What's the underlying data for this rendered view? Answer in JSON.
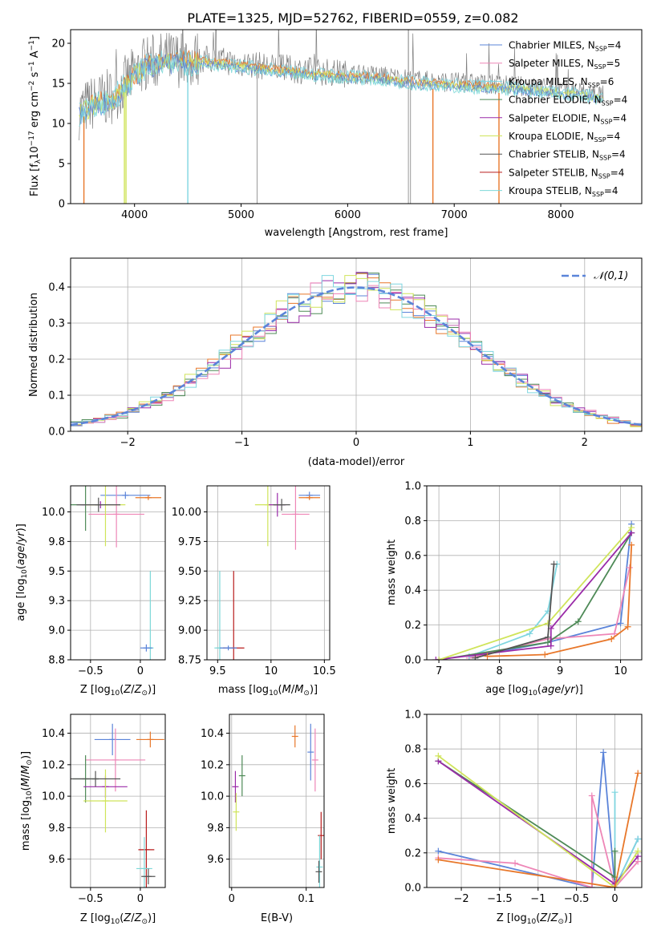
{
  "title": "PLATE=1325, MJD=52762, FIBERID=0559, z=0.082",
  "colors": {
    "chabrier_miles": "#5b84d9",
    "salpeter_miles": "#ee86b7",
    "kroupa_miles": "#7fd6e0",
    "chabrier_elodie": "#4e8a57",
    "salpeter_elodie": "#9a2aa8",
    "kroupa_elodie": "#cfe45a",
    "chabrier_stelib": "#555555",
    "salpeter_stelib": "#b91c1c",
    "kroupa_stelib": "#7dd8d8",
    "orange": "#e8772a",
    "grid": "#b0b0b0"
  },
  "chart_data": [
    {
      "type": "line",
      "xlabel": "wavelength [Angstrom, rest frame]",
      "ylabel": "Flux [f_λ 10^-17 erg cm^-2 s^-1 A^-1]",
      "xlim": [
        3400,
        8760
      ],
      "ylim": [
        0,
        21.7
      ],
      "xticks": [
        4000,
        5000,
        6000,
        7000,
        8000
      ],
      "yticks": [
        0,
        5,
        10,
        15,
        20
      ],
      "grid": false,
      "legend_position": "upper-right",
      "legend": [
        "Chabrier MILES, N_SSP=4",
        "Salpeter MILES, N_SSP=5",
        "Kroupa MILES, N_SSP=6",
        "Chabrier ELODIE, N_SSP=4",
        "Salpeter ELODIE, N_SSP=4",
        "Kroupa ELODIE, N_SSP=4",
        "Chabrier STELIB, N_SSP=4",
        "Salpeter STELIB, N_SSP=4",
        "Kroupa STELIB, N_SSP=4"
      ],
      "continuum_points": [
        [
          3480,
          11.5
        ],
        [
          3600,
          12.5
        ],
        [
          3800,
          13.5
        ],
        [
          3950,
          15.5
        ],
        [
          4100,
          17.5
        ],
        [
          4300,
          18
        ],
        [
          4500,
          18
        ],
        [
          4700,
          18
        ],
        [
          5000,
          17.5
        ],
        [
          5300,
          17
        ],
        [
          5600,
          16.6
        ],
        [
          6000,
          16.2
        ],
        [
          6300,
          16
        ],
        [
          6600,
          15.5
        ],
        [
          6900,
          15.2
        ],
        [
          7200,
          15
        ],
        [
          7450,
          14.8
        ],
        [
          7800,
          14.5
        ],
        [
          8200,
          14
        ],
        [
          8400,
          13.5
        ]
      ],
      "spikes_to_zero": [
        3900,
        4500,
        6800,
        7420,
        3520
      ]
    },
    {
      "type": "line",
      "xlabel": "(data-model)/error",
      "ylabel": "Normed distribution",
      "xlim": [
        -2.5,
        2.5
      ],
      "ylim": [
        0,
        0.48
      ],
      "xticks": [
        -2,
        -1,
        0,
        1,
        2
      ],
      "yticks": [
        0.0,
        0.1,
        0.2,
        0.3,
        0.4
      ],
      "grid": true,
      "legend_position": "upper-right",
      "legend": [
        "𝒩(0,1)"
      ],
      "gaussian": {
        "mu": 0,
        "sigma": 1
      }
    },
    {
      "type": "scatter",
      "xlabel": "Z [log10(Z/Z⊙)]",
      "ylabel": "age  [log10(age/yr)]",
      "xlim": [
        -0.7,
        0.25
      ],
      "ylim": [
        8.75,
        10.22
      ],
      "xticks": [
        -0.5,
        0.0
      ],
      "yticks": [
        8.75,
        9.0,
        9.25,
        9.5,
        9.75,
        10.0
      ],
      "grid": true,
      "points": [
        {
          "series": "chabrier_miles",
          "x": -0.15,
          "y": 10.14,
          "xerr": 0.25,
          "yerr": 0.03
        },
        {
          "series": "orange",
          "x": 0.08,
          "y": 10.12,
          "xerr": 0.13,
          "yerr": 0.02
        },
        {
          "series": "salpeter_miles",
          "x": -0.24,
          "y": 9.98,
          "xerr": 0.28,
          "yerr": 0.28
        },
        {
          "series": "chabrier_elodie",
          "x": -0.55,
          "y": 10.06,
          "xerr": 0.15,
          "yerr": 0.22
        },
        {
          "series": "salpeter_elodie",
          "x": -0.4,
          "y": 10.06,
          "xerr": 0.2,
          "yerr": 0.03
        },
        {
          "series": "kroupa_elodie",
          "x": -0.35,
          "y": 10.06,
          "xerr": 0.2,
          "yerr": 0.35
        },
        {
          "series": "chabrier_stelib",
          "x": -0.42,
          "y": 10.06,
          "xerr": 0.22,
          "yerr": 0.06
        },
        {
          "series": "kroupa_stelib",
          "x": 0.1,
          "y": 8.85,
          "xerr": 0.03,
          "yerr": 0.65
        },
        {
          "series": "chabrier_miles",
          "x": 0.06,
          "y": 8.85,
          "xerr": 0.06,
          "yerr": 0.03
        }
      ]
    },
    {
      "type": "scatter",
      "xlabel": "mass [log10(M/M⊙)]",
      "ylabel": "",
      "xlim": [
        9.4,
        10.55
      ],
      "ylim": [
        8.75,
        10.22
      ],
      "xticks": [
        9.5,
        10.0,
        10.5
      ],
      "yticks": [
        8.75,
        9.0,
        9.25,
        9.5,
        9.75,
        10.0
      ],
      "grid": true,
      "points": [
        {
          "series": "chabrier_miles",
          "x": 10.36,
          "y": 10.14,
          "xerr": 0.1,
          "yerr": 0.03
        },
        {
          "series": "orange",
          "x": 10.36,
          "y": 10.12,
          "xerr": 0.1,
          "yerr": 0.02
        },
        {
          "series": "salpeter_miles",
          "x": 10.23,
          "y": 9.98,
          "xerr": 0.13,
          "yerr": 0.3
        },
        {
          "series": "kroupa_elodie",
          "x": 9.97,
          "y": 10.06,
          "xerr": 0.12,
          "yerr": 0.35
        },
        {
          "series": "salpeter_elodie",
          "x": 10.06,
          "y": 10.06,
          "xerr": 0.08,
          "yerr": 0.1
        },
        {
          "series": "chabrier_stelib",
          "x": 10.1,
          "y": 10.06,
          "xerr": 0.08,
          "yerr": 0.05
        },
        {
          "series": "kroupa_stelib",
          "x": 9.52,
          "y": 8.85,
          "xerr": 0.05,
          "yerr": 0.65
        },
        {
          "series": "salpeter_stelib",
          "x": 9.65,
          "y": 8.85,
          "xerr": 0.1,
          "yerr": 0.65
        },
        {
          "series": "chabrier_miles",
          "x": 9.6,
          "y": 8.85,
          "xerr": 0.08,
          "yerr": 0.02
        }
      ]
    },
    {
      "type": "line",
      "xlabel": "age  [log10(age/yr)]",
      "ylabel": "mass weight",
      "xlim": [
        6.8,
        10.35
      ],
      "ylim": [
        0,
        1.0
      ],
      "xticks": [
        7,
        8,
        9,
        10
      ],
      "yticks": [
        0.0,
        0.2,
        0.4,
        0.6,
        0.8,
        1.0
      ],
      "grid": true,
      "series": [
        {
          "name": "",
          "color": "chabrier_miles",
          "points": [
            [
              7.6,
              0.02
            ],
            [
              8.8,
              0.1
            ],
            [
              10.0,
              0.21
            ],
            [
              10.18,
              0.78
            ]
          ]
        },
        {
          "name": "",
          "color": "salpeter_miles",
          "points": [
            [
              7.5,
              0.01
            ],
            [
              8.8,
              0.12
            ],
            [
              9.9,
              0.15
            ],
            [
              10.15,
              0.53
            ]
          ]
        },
        {
          "name": "",
          "color": "kroupa_miles",
          "points": [
            [
              7.5,
              0.02
            ],
            [
              8.5,
              0.15
            ],
            [
              8.8,
              0.28
            ],
            [
              8.95,
              0.55
            ]
          ]
        },
        {
          "name": "",
          "color": "chabrier_elodie",
          "points": [
            [
              7.0,
              0.0
            ],
            [
              8.8,
              0.1
            ],
            [
              9.3,
              0.22
            ],
            [
              10.18,
              0.73
            ]
          ]
        },
        {
          "name": "",
          "color": "salpeter_elodie",
          "points": [
            [
              6.95,
              0.0
            ],
            [
              8.85,
              0.08
            ],
            [
              8.85,
              0.18
            ],
            [
              10.18,
              0.73
            ]
          ]
        },
        {
          "name": "",
          "color": "kroupa_elodie",
          "points": [
            [
              7.0,
              0.0
            ],
            [
              8.8,
              0.21
            ],
            [
              10.18,
              0.76
            ]
          ]
        },
        {
          "name": "",
          "color": "chabrier_stelib",
          "points": [
            [
              7.6,
              0.01
            ],
            [
              8.8,
              0.13
            ],
            [
              8.9,
              0.55
            ]
          ]
        },
        {
          "name": "",
          "color": "orange",
          "points": [
            [
              7.8,
              0.02
            ],
            [
              8.75,
              0.03
            ],
            [
              9.85,
              0.12
            ],
            [
              10.12,
              0.19
            ],
            [
              10.18,
              0.66
            ]
          ]
        }
      ]
    },
    {
      "type": "scatter",
      "xlabel": "Z [log10(Z/Z⊙)]",
      "ylabel": "mass [log10(M/M⊙)]",
      "xlim": [
        -0.7,
        0.25
      ],
      "ylim": [
        9.42,
        10.52
      ],
      "xticks": [
        -0.5,
        0.0
      ],
      "yticks": [
        9.6,
        9.8,
        10.0,
        10.2,
        10.4
      ],
      "grid": true,
      "points": [
        {
          "series": "chabrier_miles",
          "x": -0.28,
          "y": 10.36,
          "xerr": 0.18,
          "yerr": 0.1
        },
        {
          "series": "orange",
          "x": 0.1,
          "y": 10.36,
          "xerr": 0.14,
          "yerr": 0.05
        },
        {
          "series": "salpeter_miles",
          "x": -0.25,
          "y": 10.23,
          "xerr": 0.3,
          "yerr": 0.2
        },
        {
          "series": "chabrier_elodie",
          "x": -0.55,
          "y": 10.11,
          "xerr": 0.13,
          "yerr": 0.15
        },
        {
          "series": "salpeter_elodie",
          "x": -0.35,
          "y": 10.06,
          "xerr": 0.22,
          "yerr": 0.07
        },
        {
          "series": "kroupa_elodie",
          "x": -0.35,
          "y": 9.97,
          "xerr": 0.22,
          "yerr": 0.2
        },
        {
          "series": "chabrier_stelib",
          "x": -0.45,
          "y": 10.11,
          "xerr": 0.25,
          "yerr": 0.05
        },
        {
          "series": "salpeter_stelib",
          "x": 0.06,
          "y": 9.66,
          "xerr": 0.08,
          "yerr": 0.25
        },
        {
          "series": "kroupa_stelib",
          "x": 0.04,
          "y": 9.54,
          "xerr": 0.08,
          "yerr": 0.2
        },
        {
          "series": "chabrier_stelib",
          "x": 0.08,
          "y": 9.49,
          "xerr": 0.07,
          "yerr": 0.05
        }
      ]
    },
    {
      "type": "scatter",
      "xlabel": "E(B-V)",
      "ylabel": "",
      "xlim": [
        -0.003,
        0.124
      ],
      "ylim": [
        9.42,
        10.52
      ],
      "xticks": [
        0.0,
        0.1
      ],
      "yticks": [
        9.6,
        9.8,
        10.0,
        10.2,
        10.4
      ],
      "grid": true,
      "points": [
        {
          "series": "chabrier_miles",
          "x": 0.106,
          "y": 10.28,
          "xerr": 0,
          "yerr": 0.18
        },
        {
          "series": "orange",
          "x": 0.085,
          "y": 10.38,
          "xerr": 0,
          "yerr": 0.07
        },
        {
          "series": "salpeter_miles",
          "x": 0.112,
          "y": 10.23,
          "xerr": 0,
          "yerr": 0.2
        },
        {
          "series": "chabrier_elodie",
          "x": 0.014,
          "y": 10.13,
          "xerr": 0,
          "yerr": 0.13
        },
        {
          "series": "salpeter_elodie",
          "x": 0.005,
          "y": 10.06,
          "xerr": 0,
          "yerr": 0.1
        },
        {
          "series": "kroupa_elodie",
          "x": 0.006,
          "y": 9.9,
          "xerr": 0,
          "yerr": 0.12
        },
        {
          "series": "salpeter_stelib",
          "x": 0.12,
          "y": 9.75,
          "xerr": 0,
          "yerr": 0.15
        },
        {
          "series": "kroupa_stelib",
          "x": 0.118,
          "y": 9.55,
          "xerr": 0,
          "yerr": 0.2
        },
        {
          "series": "chabrier_stelib",
          "x": 0.117,
          "y": 9.52,
          "xerr": 0,
          "yerr": 0.07
        }
      ]
    },
    {
      "type": "line",
      "xlabel": "Z [log10(Z/Z⊙)]",
      "ylabel": "mass weight",
      "xlim": [
        -2.45,
        0.35
      ],
      "ylim": [
        0,
        1.0
      ],
      "xticks": [
        -2.0,
        -1.5,
        -1.0,
        -0.5,
        0.0
      ],
      "yticks": [
        0.0,
        0.2,
        0.4,
        0.6,
        0.8,
        1.0
      ],
      "grid": true,
      "series": [
        {
          "name": "",
          "color": "chabrier_miles",
          "points": [
            [
              -2.3,
              0.21
            ],
            [
              -0.3,
              0.0
            ],
            [
              -0.15,
              0.78
            ],
            [
              0.0,
              0.0
            ],
            [
              0.3,
              0.28
            ]
          ]
        },
        {
          "name": "",
          "color": "salpeter_miles",
          "points": [
            [
              -2.3,
              0.17
            ],
            [
              -1.3,
              0.14
            ],
            [
              -0.3,
              0.0
            ],
            [
              -0.3,
              0.53
            ],
            [
              0.0,
              0.0
            ],
            [
              0.3,
              0.15
            ]
          ]
        },
        {
          "name": "",
          "color": "kroupa_miles",
          "points": [
            [
              0.0,
              0.55
            ],
            [
              0.0,
              0.0
            ],
            [
              0.3,
              0.28
            ]
          ]
        },
        {
          "name": "",
          "color": "chabrier_elodie",
          "points": [
            [
              -2.3,
              0.73
            ],
            [
              0.0,
              0.06
            ],
            [
              0.0,
              0.21
            ]
          ]
        },
        {
          "name": "",
          "color": "salpeter_elodie",
          "points": [
            [
              -2.3,
              0.73
            ],
            [
              0.0,
              0.02
            ],
            [
              0.3,
              0.18
            ]
          ]
        },
        {
          "name": "",
          "color": "kroupa_elodie",
          "points": [
            [
              -2.3,
              0.76
            ],
            [
              0.0,
              0.0
            ],
            [
              0.3,
              0.21
            ]
          ]
        },
        {
          "name": "",
          "color": "orange",
          "points": [
            [
              -2.3,
              0.16
            ],
            [
              0.0,
              0.0
            ],
            [
              0.3,
              0.66
            ]
          ]
        }
      ]
    }
  ]
}
